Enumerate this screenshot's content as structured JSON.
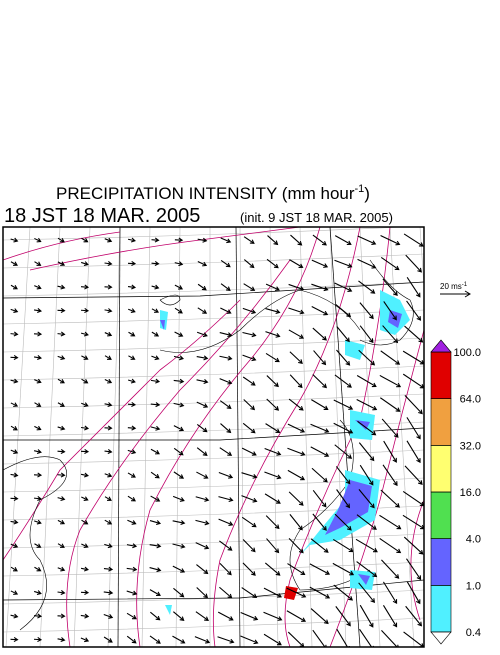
{
  "title": {
    "main": "PRECIPITATION INTENSITY (mm hour",
    "sup": "-1",
    "end": ")"
  },
  "valid_time": "18 JST 18 MAR. 2005",
  "init_time": "(init. 9 JST 18 MAR. 2005)",
  "reference_vector": {
    "label": "20 ms",
    "sup": "-1"
  },
  "colorbar": {
    "levels": [
      0.4,
      {
        "value": 1.0,
        "label": "1.0"
      },
      {
        "value": 4.0,
        "label": "4.0"
      },
      {
        "value": 16.0,
        "label": "16.0"
      },
      {
        "value": 32.0,
        "label": "32.0"
      },
      {
        "value": 64.0,
        "label": "64.0"
      },
      {
        "value": 100.0,
        "label": "100.0"
      }
    ],
    "colors": [
      "#50f0ff",
      "#6464ff",
      "#50e050",
      "#ffff70",
      "#f0a040",
      "#e00000"
    ],
    "over_color": "#a020e0",
    "under_color": "#ffffff"
  }
}
